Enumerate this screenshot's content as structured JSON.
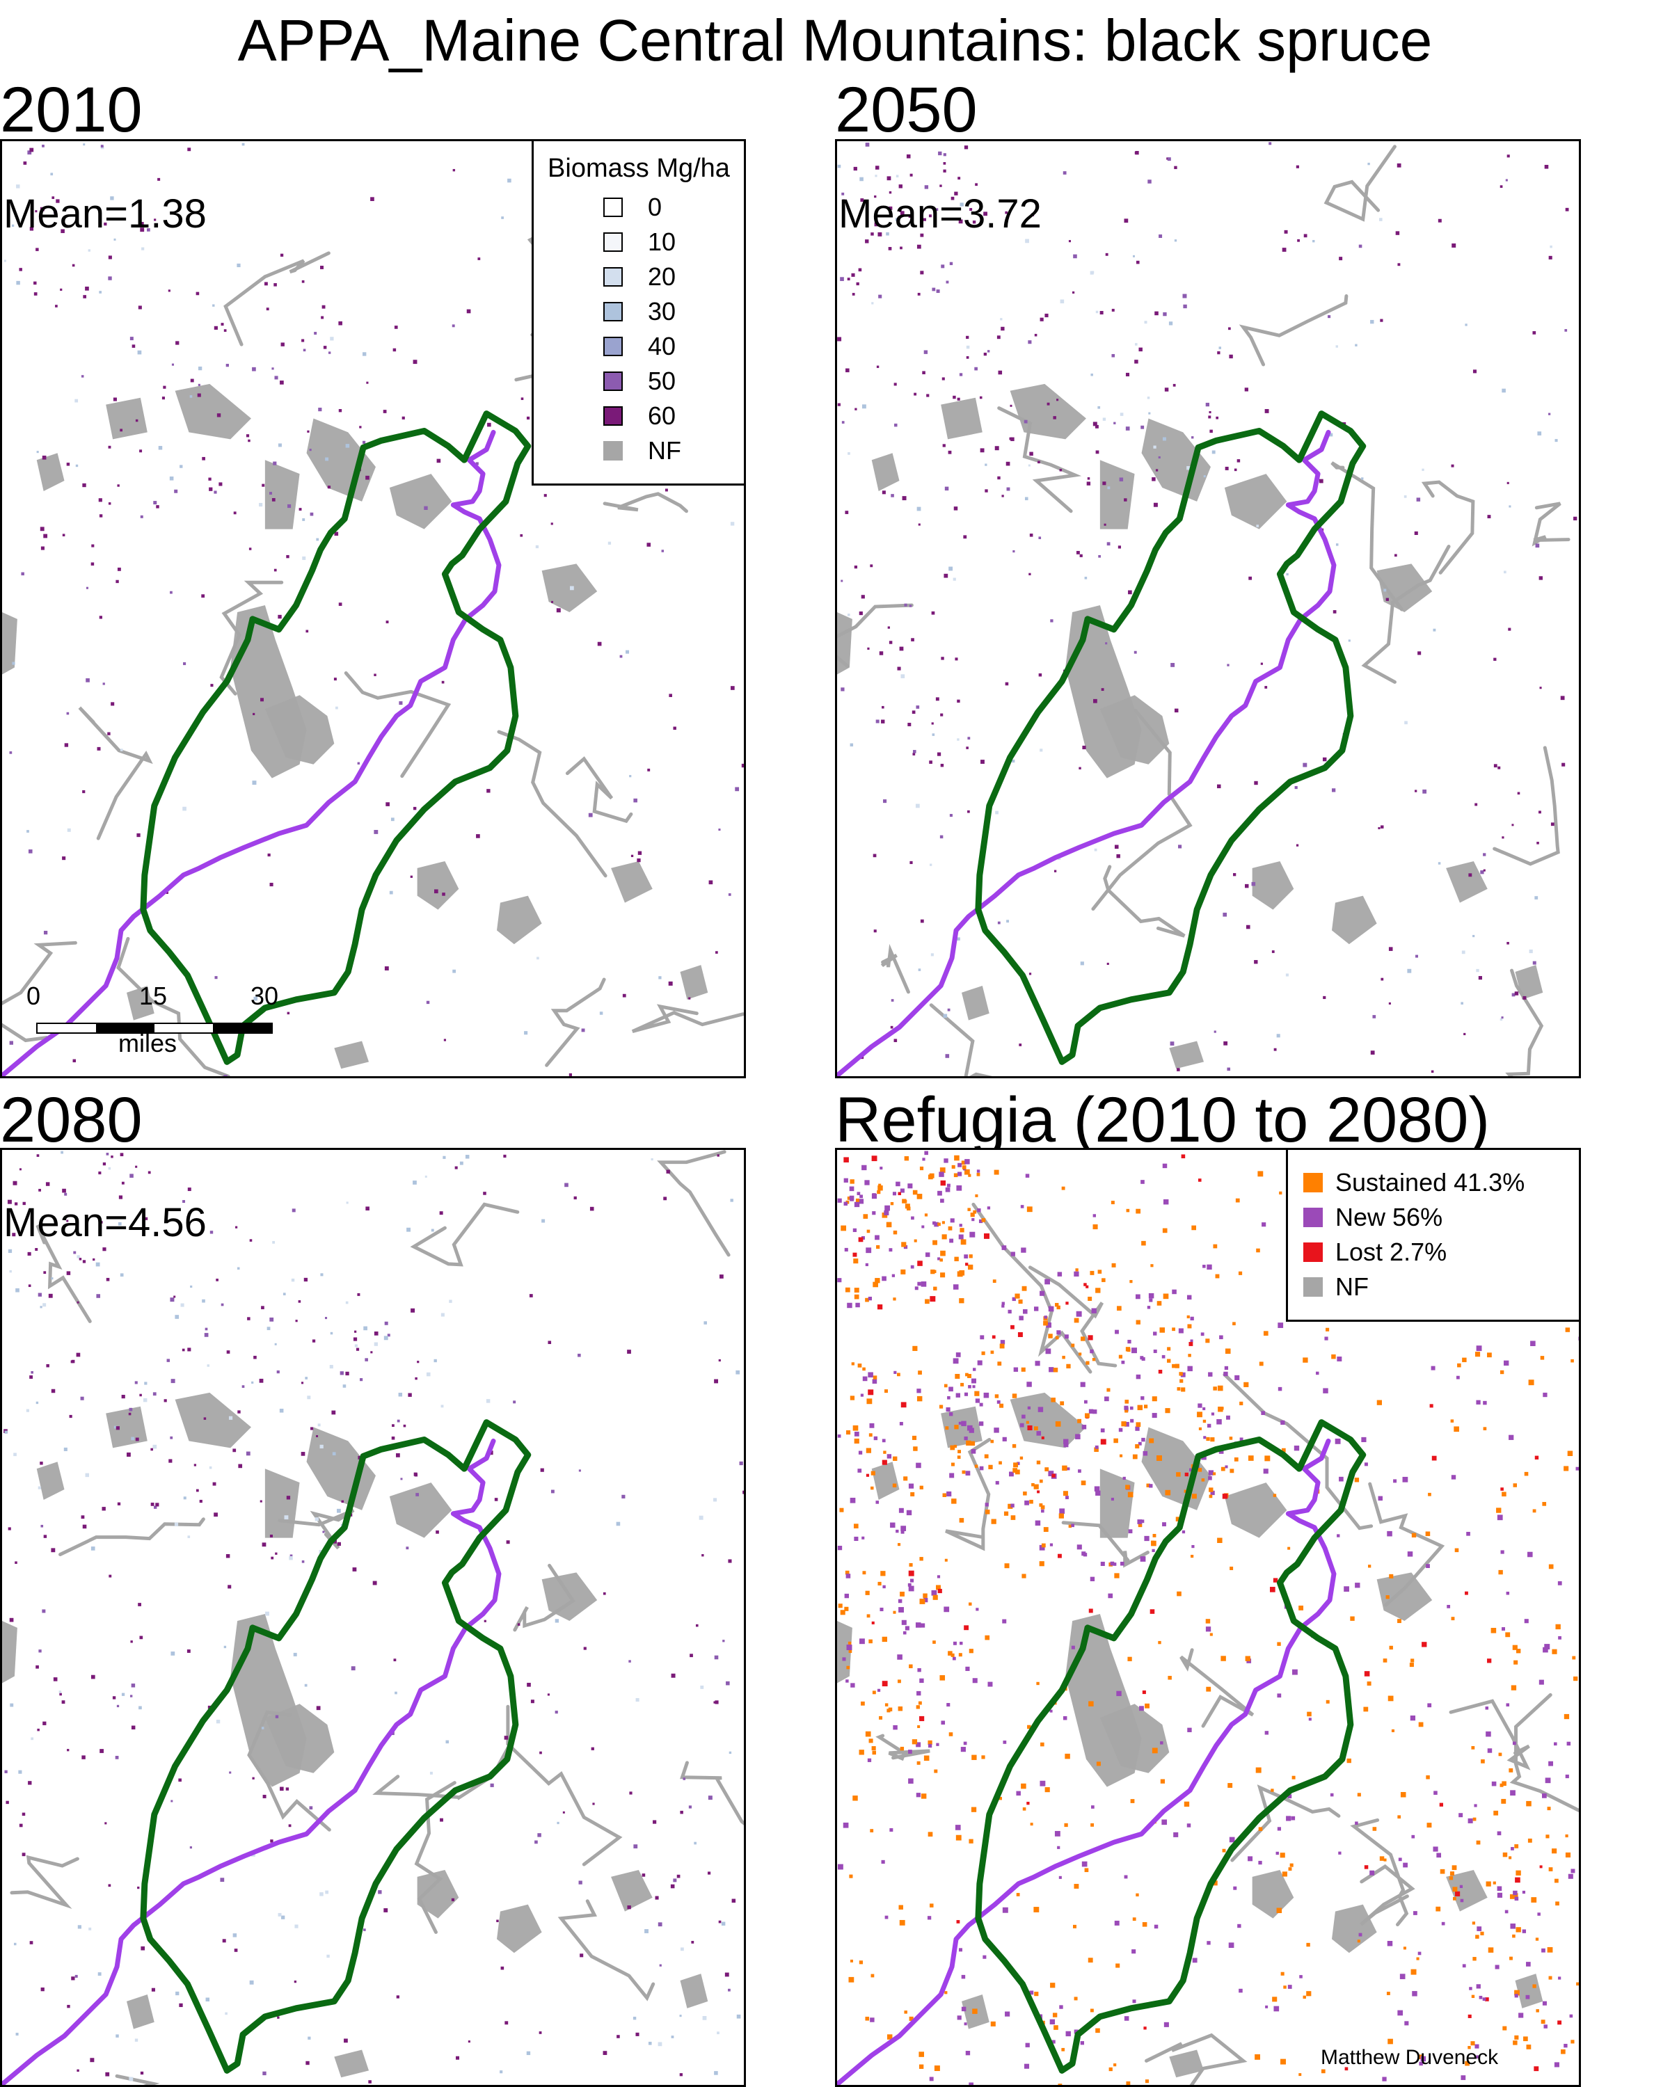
{
  "title": "APPA_Maine Central Mountains: black spruce",
  "panels": [
    {
      "id": "p2010",
      "label": "2010",
      "mean": "Mean=1.38",
      "intensity": 0.55
    },
    {
      "id": "p2050",
      "label": "2050",
      "mean": "Mean=3.72",
      "intensity": 0.85
    },
    {
      "id": "p2080",
      "label": "2080",
      "mean": "Mean=4.56",
      "intensity": 1.0
    },
    {
      "id": "refugia",
      "label": "Refugia (2010 to 2080)"
    }
  ],
  "biomass_legend": {
    "title": "Biomass Mg/ha",
    "items": [
      {
        "label": "0",
        "color": "#ffffff"
      },
      {
        "label": "10",
        "color": "#f4f6fa"
      },
      {
        "label": "20",
        "color": "#d3dfee"
      },
      {
        "label": "30",
        "color": "#aec3dd"
      },
      {
        "label": "40",
        "color": "#9aa3cf"
      },
      {
        "label": "50",
        "color": "#8c5bb0"
      },
      {
        "label": "60",
        "color": "#7a1a78"
      },
      {
        "label": "NF",
        "color": "#a6a6a6"
      }
    ]
  },
  "refugia_legend": {
    "items": [
      {
        "label": "Sustained 41.3%",
        "color": "#ff8000"
      },
      {
        "label": "New 56%",
        "color": "#9b4ab8"
      },
      {
        "label": "Lost 2.7%",
        "color": "#e8141c"
      },
      {
        "label": "NF",
        "color": "#a6a6a6"
      }
    ]
  },
  "scale_bar": {
    "ticks": [
      "0",
      "15",
      "30"
    ],
    "unit": "miles"
  },
  "credit": "Matthew Duveneck",
  "colors": {
    "boundary": "#0a6a12",
    "trail": "#a040e8",
    "nonforest": "#a6a6a6"
  }
}
